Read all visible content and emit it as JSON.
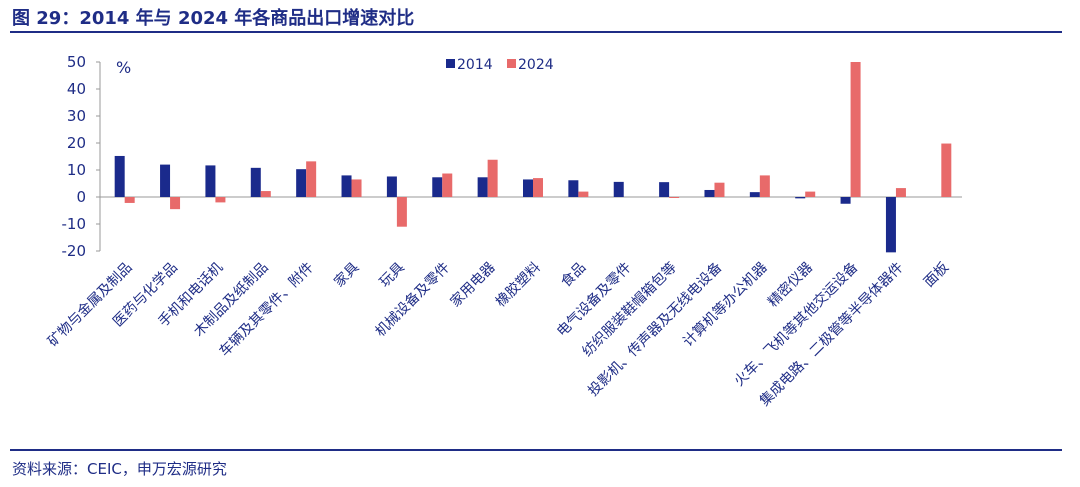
{
  "title": "图 29：2014 年与 2024 年各商品出口增速对比",
  "source": "资料来源：CEIC，申万宏源研究",
  "colors": {
    "s2014": "#1a2a8c",
    "s2024": "#e86a6a",
    "text": "#1f2d86",
    "axis": "#999999"
  },
  "chart_data": {
    "type": "bar",
    "unit_label": "%",
    "ylim": [
      -20,
      50
    ],
    "yticks": [
      50,
      40,
      30,
      20,
      10,
      0,
      -10,
      -20
    ],
    "grid": false,
    "legend_position": "top-center",
    "categories": [
      "矿物与金属及制品",
      "医药与化学品",
      "手机和电话机",
      "木制品及纸制品",
      "车辆及其零件、附件",
      "家具",
      "玩具",
      "机械设备及零件",
      "家用电器",
      "橡胶塑料",
      "食品",
      "电气设备及零件",
      "纺织服装鞋帽箱包等",
      "投影机、传声器及无线电设备",
      "计算机等办公机器",
      "精密仪器",
      "火车、飞机等其他交运设备",
      "集成电路、二极管等半导体器件",
      "面板"
    ],
    "series": [
      {
        "name": "2014",
        "values": [
          15.2,
          12,
          11.7,
          10.8,
          10.3,
          8,
          7.6,
          7.3,
          7.3,
          6.5,
          6.2,
          5.6,
          5.5,
          2.6,
          1.8,
          -0.5,
          -2.5,
          -20.5,
          null
        ]
      },
      {
        "name": "2024",
        "values": [
          -2.2,
          -4.5,
          -2,
          2.2,
          13.2,
          6.5,
          -11,
          8.7,
          13.8,
          7,
          2,
          null,
          -0.3,
          5.3,
          8,
          2,
          50,
          3.3,
          19.8
        ]
      }
    ]
  }
}
